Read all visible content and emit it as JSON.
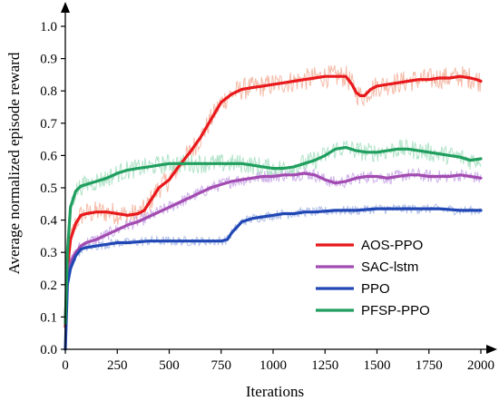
{
  "chart_data": {
    "type": "line",
    "title": "",
    "xlabel": "Iterations",
    "ylabel": "Average normalized episode reward",
    "xlim": [
      0,
      2000
    ],
    "ylim": [
      0,
      1.0
    ],
    "xticks": [
      0,
      250,
      500,
      750,
      1000,
      1250,
      1500,
      1750,
      2000
    ],
    "xtick_labels": [
      "0",
      "250",
      "500",
      "750",
      "1000",
      "1250",
      "1500",
      "1750",
      "2000"
    ],
    "yticks": [
      0,
      0.1,
      0.2,
      0.3,
      0.4,
      0.5,
      0.6,
      0.7,
      0.8,
      0.9,
      1.0
    ],
    "ytick_labels": [
      "0.0",
      "0.1",
      "0.2",
      "0.3",
      "0.4",
      "0.5",
      "0.6",
      "0.7",
      "0.8",
      "0.9",
      "1.0"
    ],
    "grid": false,
    "legend_position": "bottom-right",
    "series": [
      {
        "name": "AOS-PPO",
        "color": "#e8191c",
        "raw_color": "#f4b39d",
        "x": [
          0,
          10,
          25,
          50,
          75,
          100,
          150,
          200,
          250,
          300,
          350,
          380,
          400,
          450,
          500,
          550,
          600,
          650,
          700,
          750,
          800,
          850,
          900,
          950,
          1000,
          1050,
          1100,
          1150,
          1200,
          1250,
          1300,
          1350,
          1380,
          1400,
          1420,
          1440,
          1470,
          1500,
          1550,
          1600,
          1650,
          1700,
          1750,
          1800,
          1850,
          1900,
          1950,
          1980,
          2000
        ],
        "y": [
          0.07,
          0.25,
          0.34,
          0.39,
          0.415,
          0.42,
          0.425,
          0.425,
          0.42,
          0.415,
          0.42,
          0.43,
          0.45,
          0.5,
          0.525,
          0.57,
          0.61,
          0.655,
          0.71,
          0.765,
          0.79,
          0.805,
          0.81,
          0.815,
          0.82,
          0.825,
          0.83,
          0.835,
          0.84,
          0.845,
          0.845,
          0.845,
          0.82,
          0.795,
          0.785,
          0.785,
          0.805,
          0.815,
          0.82,
          0.825,
          0.83,
          0.835,
          0.835,
          0.84,
          0.84,
          0.845,
          0.84,
          0.835,
          0.83
        ]
      },
      {
        "name": "SAC-lstm",
        "color": "#a24bb0",
        "raw_color": "#c9a7e8",
        "x": [
          0,
          10,
          25,
          50,
          75,
          100,
          150,
          200,
          250,
          300,
          350,
          400,
          450,
          500,
          550,
          600,
          650,
          700,
          750,
          800,
          850,
          900,
          950,
          1000,
          1050,
          1100,
          1150,
          1200,
          1250,
          1300,
          1350,
          1400,
          1450,
          1500,
          1550,
          1600,
          1650,
          1700,
          1750,
          1800,
          1850,
          1900,
          1950,
          2000
        ],
        "y": [
          0.1,
          0.22,
          0.27,
          0.3,
          0.32,
          0.33,
          0.34,
          0.355,
          0.37,
          0.385,
          0.395,
          0.41,
          0.425,
          0.44,
          0.455,
          0.47,
          0.485,
          0.5,
          0.51,
          0.52,
          0.525,
          0.53,
          0.535,
          0.535,
          0.54,
          0.54,
          0.545,
          0.54,
          0.525,
          0.515,
          0.52,
          0.53,
          0.535,
          0.535,
          0.53,
          0.535,
          0.54,
          0.54,
          0.535,
          0.535,
          0.535,
          0.54,
          0.535,
          0.53
        ]
      },
      {
        "name": "PPO",
        "color": "#2047b4",
        "raw_color": "#a9b8e6",
        "x": [
          0,
          10,
          25,
          50,
          75,
          100,
          150,
          200,
          250,
          300,
          400,
          500,
          600,
          700,
          750,
          780,
          800,
          850,
          900,
          950,
          1000,
          1050,
          1100,
          1150,
          1200,
          1300,
          1400,
          1500,
          1600,
          1700,
          1800,
          1900,
          1950,
          2000
        ],
        "y": [
          0.0,
          0.2,
          0.25,
          0.29,
          0.31,
          0.315,
          0.32,
          0.325,
          0.33,
          0.33,
          0.335,
          0.335,
          0.335,
          0.335,
          0.335,
          0.34,
          0.36,
          0.395,
          0.405,
          0.41,
          0.415,
          0.42,
          0.42,
          0.425,
          0.425,
          0.43,
          0.43,
          0.435,
          0.435,
          0.435,
          0.435,
          0.43,
          0.43,
          0.43
        ]
      },
      {
        "name": "PFSP-PPO",
        "color": "#1f9e5e",
        "raw_color": "#a9e0c2",
        "x": [
          0,
          10,
          25,
          50,
          75,
          100,
          150,
          200,
          250,
          300,
          350,
          400,
          450,
          500,
          550,
          600,
          650,
          700,
          750,
          800,
          850,
          900,
          950,
          1000,
          1050,
          1100,
          1150,
          1200,
          1250,
          1300,
          1350,
          1400,
          1450,
          1500,
          1550,
          1600,
          1650,
          1700,
          1750,
          1800,
          1850,
          1900,
          1950,
          2000
        ],
        "y": [
          0.08,
          0.3,
          0.44,
          0.49,
          0.505,
          0.51,
          0.52,
          0.53,
          0.545,
          0.555,
          0.56,
          0.565,
          0.57,
          0.575,
          0.575,
          0.575,
          0.575,
          0.575,
          0.575,
          0.575,
          0.575,
          0.57,
          0.565,
          0.56,
          0.56,
          0.565,
          0.575,
          0.585,
          0.6,
          0.62,
          0.625,
          0.615,
          0.61,
          0.61,
          0.615,
          0.62,
          0.62,
          0.615,
          0.61,
          0.605,
          0.6,
          0.595,
          0.585,
          0.59
        ]
      }
    ]
  }
}
